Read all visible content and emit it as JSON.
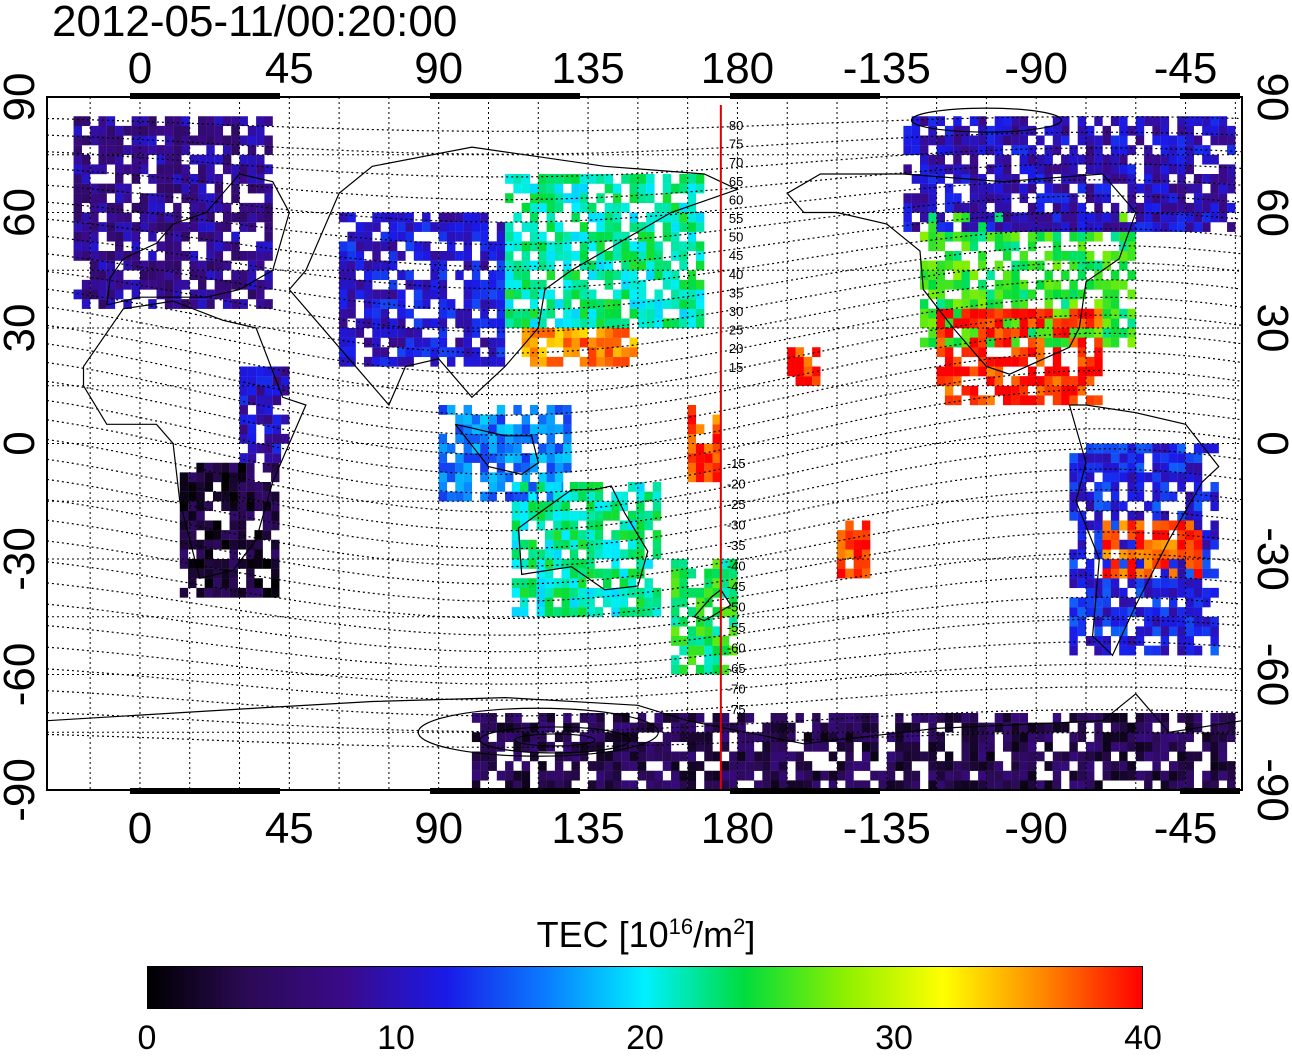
{
  "timestamp": "2012-05-11/00:20:00",
  "lon_tick_labels": [
    "0",
    "45",
    "90",
    "135",
    "180",
    "-135",
    "-90",
    "-45"
  ],
  "lat_tick_labels": [
    "90",
    "60",
    "30",
    "0",
    "-30",
    "-60",
    "-90"
  ],
  "meridian_label": "180",
  "contour_labels_north": [
    "80",
    "75",
    "70",
    "65",
    "60",
    "55",
    "50",
    "45",
    "40",
    "35",
    "30",
    "25",
    "20",
    "15"
  ],
  "contour_labels_south": [
    "-15",
    "-20",
    "-25",
    "-30",
    "-35",
    "-40",
    "-45",
    "-50",
    "-55",
    "-60",
    "-65",
    "-70",
    "-75"
  ],
  "colorbar": {
    "title_prefix": "TEC  [10",
    "title_sup1": "16",
    "title_mid": "/m",
    "title_sup2": "2",
    "title_suffix": "]",
    "min": 0,
    "max": 40,
    "tick_labels": [
      "0",
      "10",
      "20",
      "30",
      "40"
    ],
    "stops": [
      "#000000",
      "#2b0a55",
      "#3a0a8a",
      "#1a1ae8",
      "#0a7cff",
      "#00f0ff",
      "#00dc3c",
      "#8cf000",
      "#ffff00",
      "#ff8800",
      "#ff0000"
    ]
  },
  "colors": {
    "grid": "#000000",
    "meridian_line": "#e00000",
    "land": "#000000"
  },
  "map_extent": {
    "lon_min": -28,
    "lon_max": 332,
    "lat_min": -90,
    "lat_max": 90
  },
  "tec_regions": [
    {
      "name": "europe",
      "lon_min": -20,
      "lon_max": 40,
      "lat_min": 35,
      "lat_max": 85,
      "tec": 8
    },
    {
      "name": "africa-south",
      "lon_min": 12,
      "lon_max": 40,
      "lat_min": -40,
      "lat_max": -5,
      "tec": 3
    },
    {
      "name": "africa-east",
      "lon_min": 30,
      "lon_max": 45,
      "lat_min": -5,
      "lat_max": 20,
      "tec": 10
    },
    {
      "name": "asia-central",
      "lon_min": 60,
      "lon_max": 110,
      "lat_min": 20,
      "lat_max": 60,
      "tec": 11
    },
    {
      "name": "east-asia",
      "lon_min": 110,
      "lon_max": 170,
      "lat_min": 30,
      "lat_max": 70,
      "tec": 22
    },
    {
      "name": "china-south",
      "lon_min": 115,
      "lon_max": 150,
      "lat_min": 20,
      "lat_max": 30,
      "tec": 36
    },
    {
      "name": "indonesia",
      "lon_min": 90,
      "lon_max": 130,
      "lat_min": -15,
      "lat_max": 10,
      "tec": 16
    },
    {
      "name": "australia",
      "lon_min": 112,
      "lon_max": 155,
      "lat_min": -45,
      "lat_max": -12,
      "tec": 22
    },
    {
      "name": "new-zealand",
      "lon_min": 160,
      "lon_max": 180,
      "lat_min": -60,
      "lat_max": -30,
      "tec": 24
    },
    {
      "name": "pacific-equator",
      "lon_min": 165,
      "lon_max": 175,
      "lat_min": -10,
      "lat_max": 10,
      "tec": 38
    },
    {
      "name": "hawaii",
      "lon_min": 195,
      "lon_max": 205,
      "lat_min": 15,
      "lat_max": 25,
      "tec": 39
    },
    {
      "name": "pacific-south",
      "lon_min": 210,
      "lon_max": 220,
      "lat_min": -35,
      "lat_max": -20,
      "tec": 38
    },
    {
      "name": "north-america",
      "lon_min": 235,
      "lon_max": 300,
      "lat_min": 25,
      "lat_max": 60,
      "tec": 25
    },
    {
      "name": "north-america-south",
      "lon_min": 240,
      "lon_max": 290,
      "lat_min": 10,
      "lat_max": 35,
      "tec": 39
    },
    {
      "name": "canada",
      "lon_min": 230,
      "lon_max": 330,
      "lat_min": 55,
      "lat_max": 85,
      "tec": 10
    },
    {
      "name": "south-america",
      "lon_min": 280,
      "lon_max": 325,
      "lat_min": -55,
      "lat_max": 0,
      "tec": 12
    },
    {
      "name": "south-america-anomaly",
      "lon_min": 290,
      "lon_max": 320,
      "lat_min": -35,
      "lat_max": -20,
      "tec": 38
    },
    {
      "name": "antarctica",
      "lon_min": 100,
      "lon_max": 330,
      "lat_min": -90,
      "lat_max": -70,
      "tec": 4
    }
  ]
}
